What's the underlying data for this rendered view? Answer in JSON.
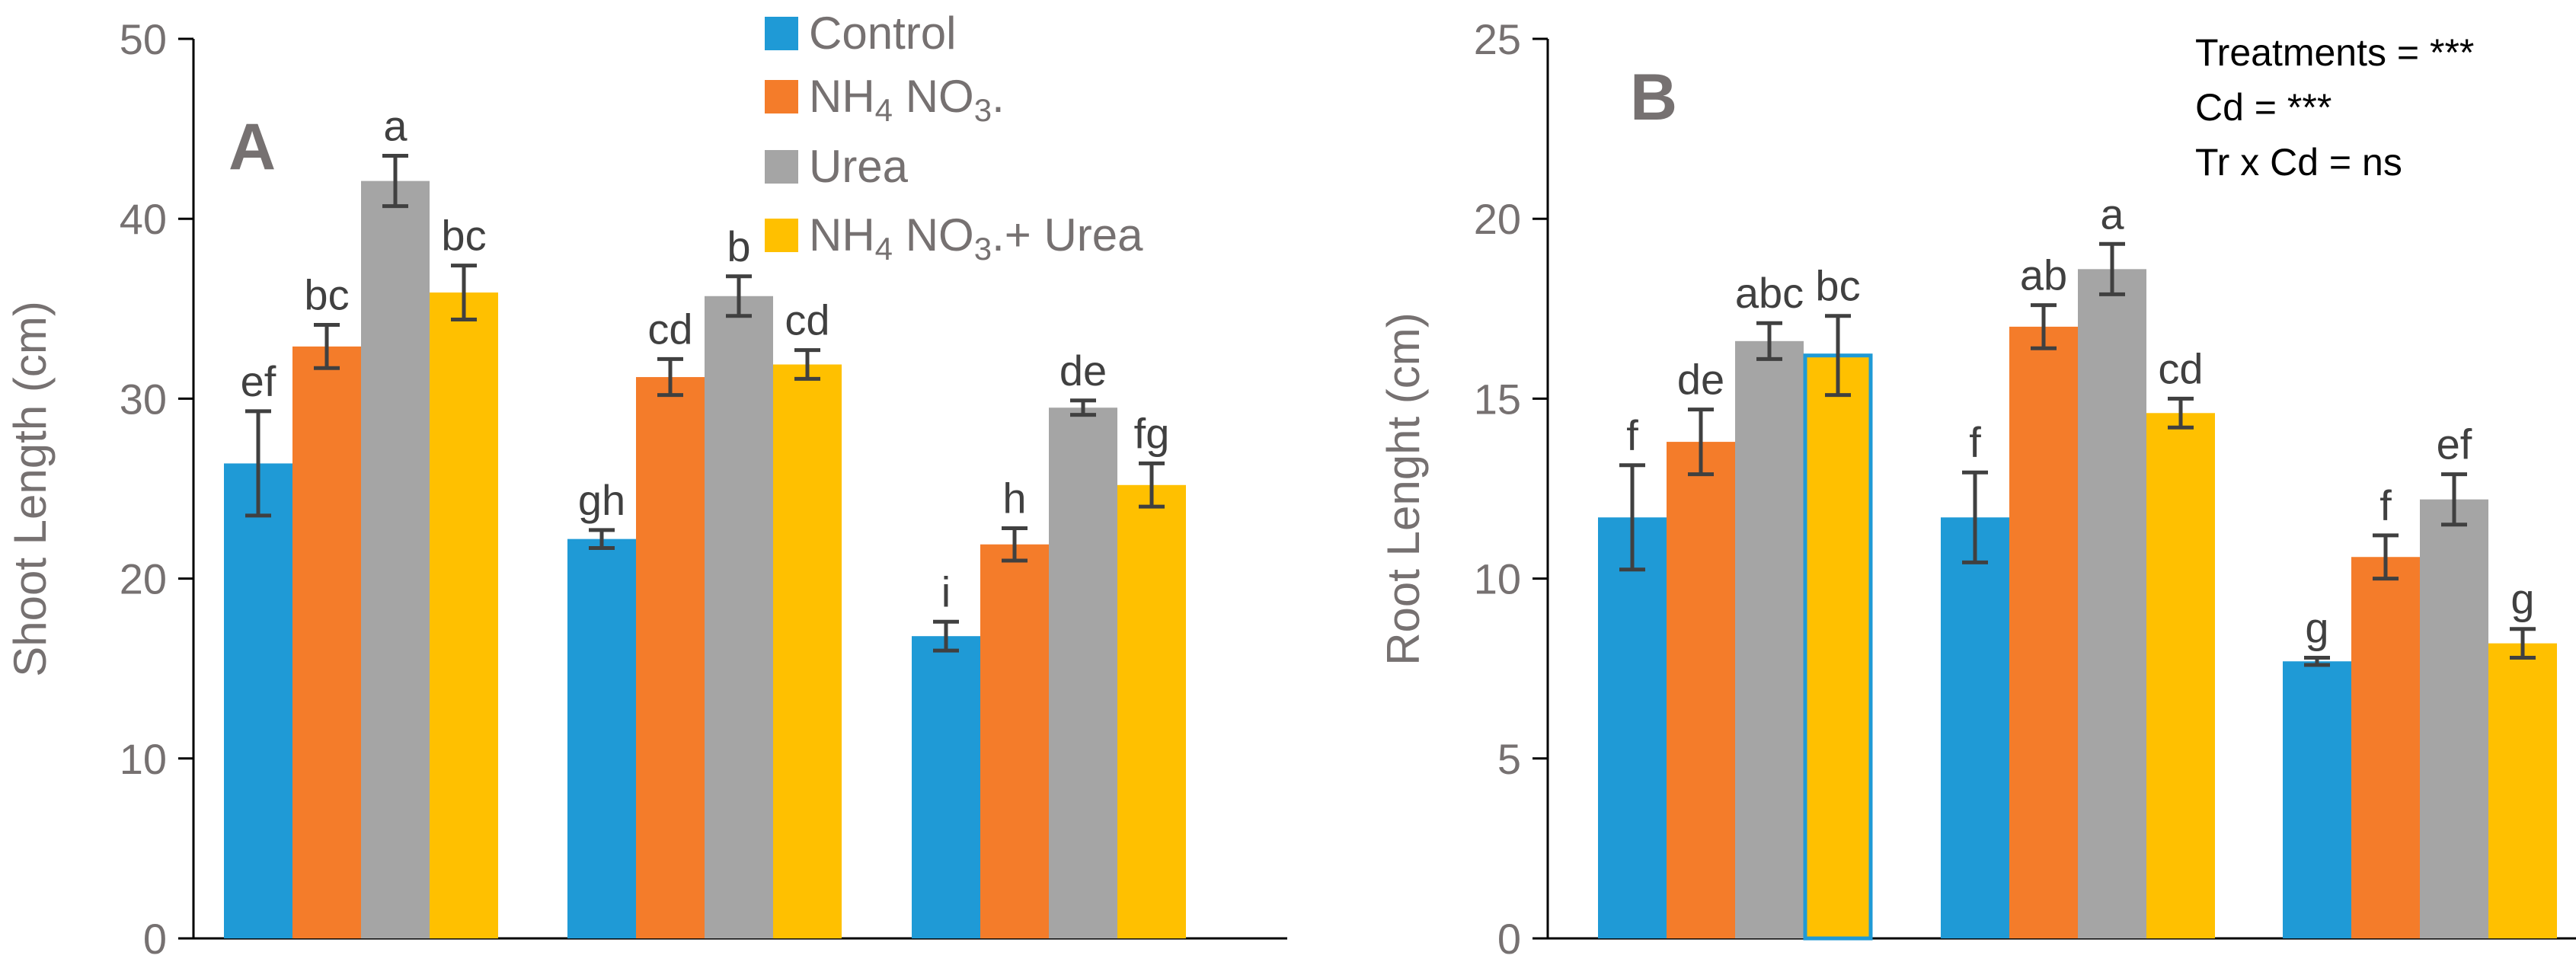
{
  "colors": {
    "Control": "#1f9ad6",
    "NH4NO3": "#f47c2a",
    "Urea": "#a5a5a5",
    "NH4NO3 + Urea": "#ffc000",
    "axis": "#000000",
    "text": "#767171",
    "errorbar": "#404040",
    "highlight_border": "#1f9ad6"
  },
  "legend": {
    "items": [
      {
        "key": "Control",
        "label": "Control"
      },
      {
        "key": "NH4NO3",
        "label": "NH4 NO3."
      },
      {
        "key": "Urea",
        "label": "Urea"
      },
      {
        "key": "NH4NO3 + Urea",
        "label": "NH4 NO3.+ Urea"
      }
    ]
  },
  "chart_data": [
    {
      "panel": "A",
      "type": "bar",
      "title": "A",
      "xlabel": "",
      "ylabel": "Shoot Length (cm)",
      "ylim": [
        0,
        50
      ],
      "yticks": [
        0,
        10,
        20,
        30,
        40,
        50
      ],
      "groups": 3,
      "series": [
        {
          "name": "Control",
          "values": [
            26.4,
            22.2,
            16.8
          ],
          "errors": [
            2.9,
            0.5,
            0.8
          ],
          "labels": [
            "ef",
            "gh",
            "i"
          ]
        },
        {
          "name": "NH4NO3",
          "values": [
            32.9,
            31.2,
            21.9
          ],
          "errors": [
            1.2,
            1.0,
            0.9
          ],
          "labels": [
            "bc",
            "cd",
            "h"
          ]
        },
        {
          "name": "Urea",
          "values": [
            42.1,
            35.7,
            29.5
          ],
          "errors": [
            1.4,
            1.1,
            0.4
          ],
          "labels": [
            "a",
            "b",
            "de"
          ]
        },
        {
          "name": "NH4NO3 + Urea",
          "values": [
            35.9,
            31.9,
            25.2
          ],
          "errors": [
            1.5,
            0.8,
            1.2
          ],
          "labels": [
            "bc",
            "cd",
            "fg"
          ]
        }
      ]
    },
    {
      "panel": "B",
      "type": "bar",
      "title": "B",
      "xlabel": "",
      "ylabel": "Root Lenght  (cm)",
      "ylim": [
        0,
        25
      ],
      "yticks": [
        0,
        5,
        10,
        15,
        20,
        25
      ],
      "groups": 3,
      "series": [
        {
          "name": "Control",
          "values": [
            11.7,
            11.7,
            7.7
          ],
          "errors": [
            1.45,
            1.25,
            0.1
          ],
          "labels": [
            "f",
            "f",
            "g"
          ]
        },
        {
          "name": "NH4NO3",
          "values": [
            13.8,
            17.0,
            10.6
          ],
          "errors": [
            0.9,
            0.6,
            0.6
          ],
          "labels": [
            "de",
            "ab",
            "f"
          ]
        },
        {
          "name": "Urea",
          "values": [
            16.6,
            18.6,
            12.2
          ],
          "errors": [
            0.5,
            0.7,
            0.7
          ],
          "labels": [
            "abc",
            "a",
            "ef"
          ]
        },
        {
          "name": "NH4NO3 + Urea",
          "values": [
            16.2,
            14.6,
            8.2
          ],
          "errors": [
            1.1,
            0.4,
            0.4
          ],
          "labels": [
            "bc",
            "cd",
            "g"
          ],
          "highlight_index": 0
        }
      ],
      "annotations": [
        "Treatments = ***",
        "Cd = ***",
        "Tr x Cd = ns"
      ]
    }
  ]
}
